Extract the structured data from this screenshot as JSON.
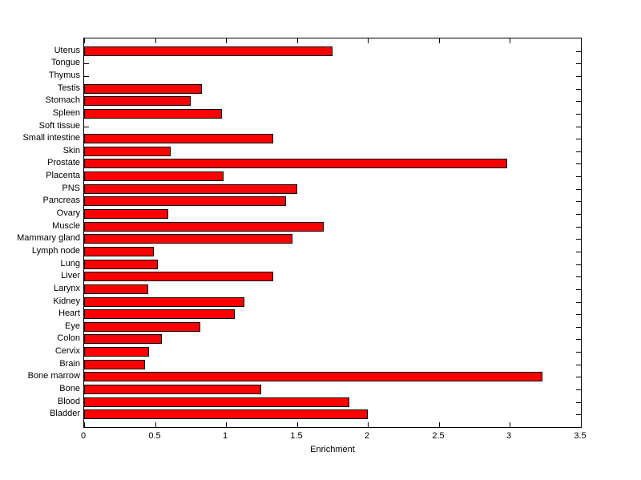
{
  "chart_data": {
    "type": "bar",
    "orientation": "horizontal",
    "title": "",
    "xlabel": "Enrichment",
    "ylabel": "",
    "xlim": [
      0,
      3.5
    ],
    "xticks": [
      0,
      0.5,
      1,
      1.5,
      2,
      2.5,
      3,
      3.5
    ],
    "xtick_labels": [
      "0",
      "0.5",
      "1",
      "1.5",
      "2",
      "2.5",
      "3",
      "3.5"
    ],
    "grid": false,
    "legend": "none",
    "bar_color": "#ff0000",
    "bar_edge_color": "#000000",
    "axis_color": "#000000",
    "background_color": "#ffffff",
    "categories_top_to_bottom": [
      "Uterus",
      "Tongue",
      "Thymus",
      "Testis",
      "Stomach",
      "Spleen",
      "Soft tissue",
      "Small intestine",
      "Skin",
      "Prostate",
      "Placenta",
      "PNS",
      "Pancreas",
      "Ovary",
      "Muscle",
      "Mammary gland",
      "Lymph node",
      "Lung",
      "Liver",
      "Larynx",
      "Kidney",
      "Heart",
      "Eye",
      "Colon",
      "Cervix",
      "Brain",
      "Bone marrow",
      "Bone",
      "Blood",
      "Bladder"
    ],
    "values": [
      1.75,
      0,
      0,
      0.83,
      0.75,
      0.97,
      0,
      1.33,
      0.61,
      2.98,
      0.98,
      1.5,
      1.42,
      0.59,
      1.69,
      1.47,
      0.49,
      0.52,
      1.33,
      0.45,
      1.13,
      1.06,
      0.82,
      0.55,
      0.46,
      0.43,
      3.23,
      1.25,
      1.87,
      2.0
    ]
  }
}
